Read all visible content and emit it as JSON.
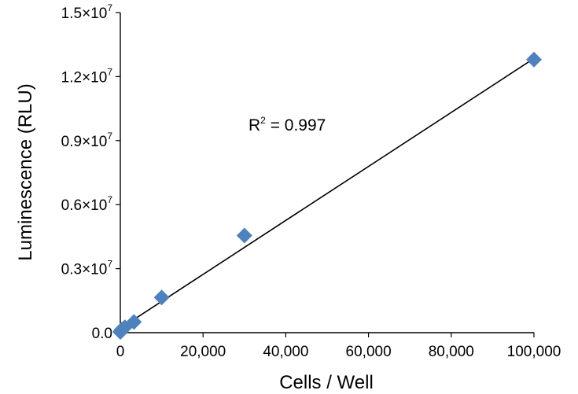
{
  "chart_data": {
    "type": "scatter",
    "xlabel": "Cells / Well",
    "ylabel": "Luminescence (RLU)",
    "xlim": [
      0,
      100000
    ],
    "ylim": [
      0,
      15000000
    ],
    "x_ticks": [
      0,
      20000,
      40000,
      60000,
      80000,
      100000
    ],
    "x_tick_labels": [
      "0",
      "20,000",
      "40,000",
      "60,000",
      "80,000",
      "100,000"
    ],
    "y_ticks": [
      0,
      3000000,
      6000000,
      9000000,
      12000000,
      15000000
    ],
    "y_tick_labels": [
      {
        "mantissa": "0.0",
        "exponent": ""
      },
      {
        "mantissa": "0.3×10",
        "exponent": "7"
      },
      {
        "mantissa": "0.6×10",
        "exponent": "7"
      },
      {
        "mantissa": "0.9×10",
        "exponent": "7"
      },
      {
        "mantissa": "1.2×10",
        "exponent": "7"
      },
      {
        "mantissa": "1.5×10",
        "exponent": "7"
      }
    ],
    "series": [
      {
        "marker": "diamond",
        "color": "#4F81BD",
        "points": [
          {
            "x": 0,
            "y": 30000
          },
          {
            "x": 120,
            "y": 70000
          },
          {
            "x": 370,
            "y": 150000
          },
          {
            "x": 1100,
            "y": 250000
          },
          {
            "x": 3300,
            "y": 500000
          },
          {
            "x": 10000,
            "y": 1650000
          },
          {
            "x": 30000,
            "y": 4550000
          },
          {
            "x": 100000,
            "y": 12800000
          }
        ]
      }
    ],
    "trendline": {
      "type": "linear",
      "color": "#000000",
      "x_start": 0,
      "y_start": 200000,
      "x_end": 100000,
      "y_end": 12850000
    },
    "annotation": {
      "r_label": "R",
      "r_sup": "2",
      "r_value": " = 0.997"
    },
    "grid": false,
    "legend": "none"
  }
}
